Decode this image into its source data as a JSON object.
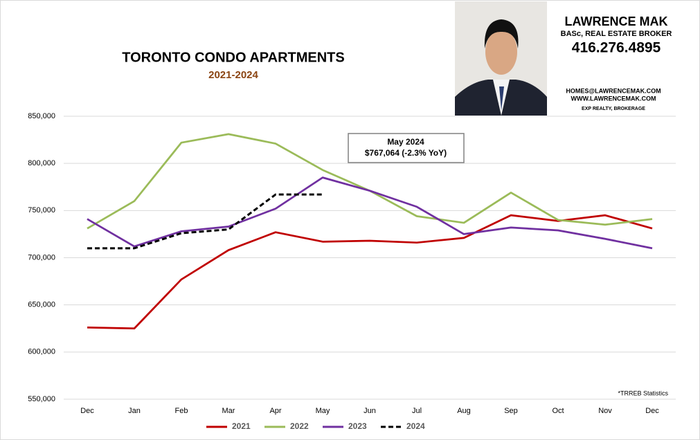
{
  "chart_data": {
    "type": "line",
    "title": "TORONTO CONDO APARTMENTS",
    "subtitle": "2021-2024",
    "categories": [
      "Dec",
      "Jan",
      "Feb",
      "Mar",
      "Apr",
      "May",
      "Jun",
      "Jul",
      "Aug",
      "Sep",
      "Oct",
      "Nov",
      "Dec"
    ],
    "series": [
      {
        "name": "2021",
        "color": "#c00000",
        "style": "solid",
        "values": [
          626000,
          625000,
          677000,
          708000,
          727000,
          717000,
          718000,
          716000,
          721000,
          745000,
          739000,
          745000,
          731000
        ]
      },
      {
        "name": "2022",
        "color": "#9bbb59",
        "style": "solid",
        "values": [
          731000,
          760000,
          822000,
          831000,
          821000,
          793000,
          771000,
          744000,
          737000,
          769000,
          740000,
          735000,
          741000
        ]
      },
      {
        "name": "2023",
        "color": "#7030a0",
        "style": "solid",
        "values": [
          741000,
          712000,
          728000,
          733000,
          752000,
          785000,
          771000,
          754000,
          725000,
          732000,
          729000,
          720000,
          710000
        ]
      },
      {
        "name": "2024",
        "color": "#000000",
        "style": "dashed",
        "values": [
          710000,
          710000,
          726000,
          730000,
          767000,
          767064,
          null,
          null,
          null,
          null,
          null,
          null,
          null
        ]
      }
    ],
    "ylim": [
      550000,
      850000
    ],
    "yticks": [
      {
        "value": 550000,
        "label": "550,000"
      },
      {
        "value": 600000,
        "label": "600,000"
      },
      {
        "value": 650000,
        "label": "650,000"
      },
      {
        "value": 700000,
        "label": "700,000"
      },
      {
        "value": 750000,
        "label": "750,000"
      },
      {
        "value": 800000,
        "label": "800,000"
      },
      {
        "value": 850000,
        "label": "850,000"
      }
    ],
    "grid": true,
    "legend": "bottom",
    "annotations": [
      "May 2024",
      "$767,064 (-2.3%  YoY)"
    ],
    "footnote": "*TRREB Statistics"
  },
  "branding": {
    "name": "LAWRENCE MAK",
    "credentials": "BASc, REAL ESTATE BROKER",
    "phone": "416.276.4895",
    "email": "HOMES@LAWRENCEMAK.COM",
    "website": "WWW.LAWRENCEMAK.COM",
    "brokerage": "EXP REALTY, BROKERAGE"
  }
}
